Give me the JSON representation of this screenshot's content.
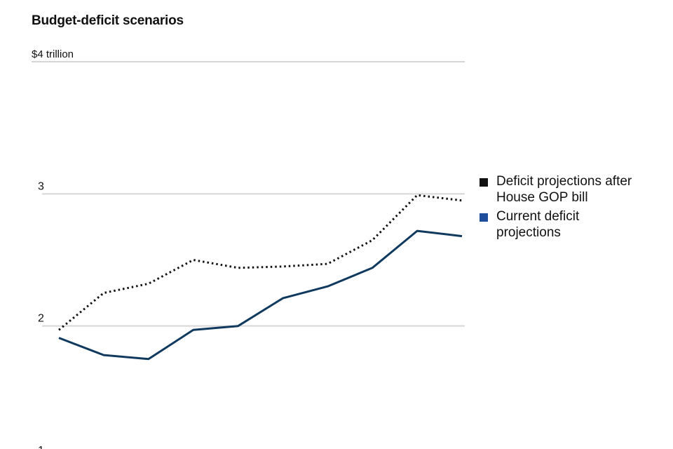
{
  "chart_data": {
    "type": "line",
    "title": "Budget-deficit scenarios",
    "xlabel": "",
    "ylabel": "",
    "ylim": [
      1,
      4
    ],
    "y_ticks": [
      "$4 trillion",
      "3",
      "2",
      "1"
    ],
    "y_tick_values": [
      4,
      3,
      2,
      1
    ],
    "x": [
      1,
      2,
      3,
      4,
      5,
      6,
      7,
      8,
      9,
      10
    ],
    "grid": true,
    "legend_position": "right",
    "series": [
      {
        "name": "Deficit projections after House GOP bill",
        "style": "dotted",
        "color": "#111111",
        "values": [
          1.97,
          2.25,
          2.32,
          2.5,
          2.44,
          2.45,
          2.47,
          2.65,
          2.99,
          2.95
        ]
      },
      {
        "name": "Current deficit projections",
        "style": "solid",
        "color": "#0f3a5e",
        "values": [
          1.91,
          1.78,
          1.75,
          1.97,
          2.0,
          2.21,
          2.3,
          2.44,
          2.72,
          2.68
        ]
      }
    ]
  },
  "legend": [
    {
      "label": "Deficit projections after\nHouse GOP bill",
      "color": "#111111"
    },
    {
      "label": "Current deficit\nprojections",
      "color": "#1f4f9c"
    }
  ]
}
